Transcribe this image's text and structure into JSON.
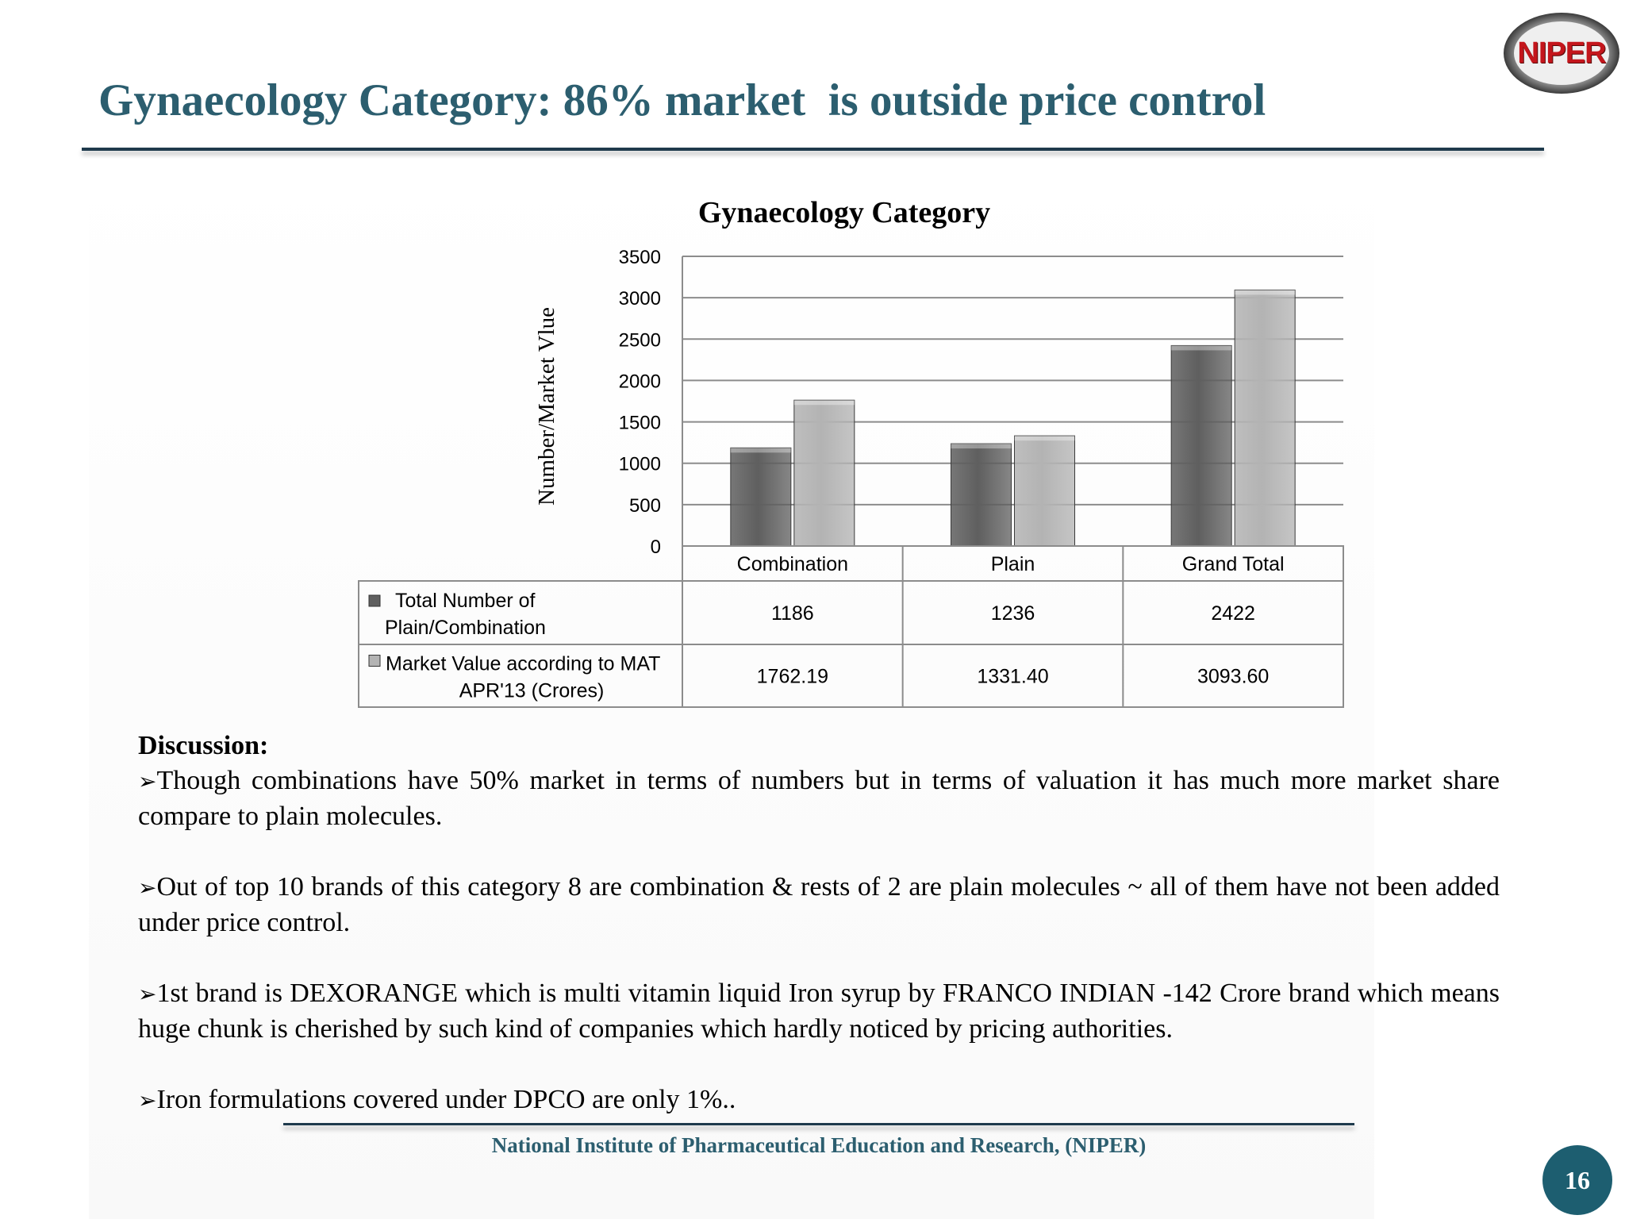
{
  "slide": {
    "title": "Gynaecology Category: 86% market  is outside price control",
    "logo_text": "NIPER",
    "footer": "National Institute of Pharmaceutical Education and Research, (NIPER)",
    "page_number": "16"
  },
  "chart_data": {
    "type": "bar",
    "title": "Gynaecology Category",
    "xlabel": "",
    "ylabel": "Number/Market Vlue",
    "ylim": [
      0,
      3500
    ],
    "yticks": [
      0,
      500,
      1000,
      1500,
      2000,
      2500,
      3000,
      3500
    ],
    "grid": true,
    "legend": "data-table",
    "categories": [
      "Combination",
      "Plain",
      "Grand Total"
    ],
    "series": [
      {
        "name": "Total Number of Plain/Combination",
        "name_lines": [
          "Total Number of",
          "Plain/Combination"
        ],
        "values": [
          1186,
          1236,
          2422
        ],
        "display_values": [
          "1186",
          "1236",
          "2422"
        ],
        "color": "#5f5f5f"
      },
      {
        "name": "Market Value according to MAT APR'13  (Crores)",
        "name_lines": [
          "Market Value according to MAT",
          "APR'13  (Crores)"
        ],
        "values": [
          1762.19,
          1331.4,
          3093.6
        ],
        "display_values": [
          "1762.19",
          "1331.40",
          "3093.60"
        ],
        "color": "#b3b3b3"
      }
    ]
  },
  "discussion": {
    "heading": "Discussion:",
    "bullet_glyph": "➢",
    "items": [
      "Though combinations have 50% market in terms of numbers but in terms of valuation it has much more market share compare to plain molecules.",
      "Out of top 10 brands of this category 8 are combination & rests of 2 are plain molecules ~ all of them have not been added under price control.",
      "1st brand is DEXORANGE which is multi vitamin liquid Iron syrup by FRANCO INDIAN -142 Crore brand which means huge chunk is cherished by such kind of companies which hardly noticed by pricing authorities.",
      "Iron formulations covered under DPCO are only 1%.."
    ]
  }
}
